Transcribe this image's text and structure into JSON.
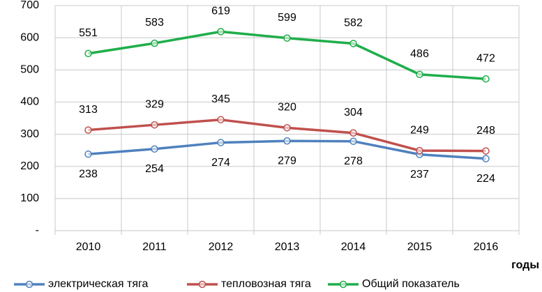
{
  "chart_data": {
    "type": "line",
    "x_label": "годы",
    "categories": [
      "2010",
      "2011",
      "2012",
      "2013",
      "2014",
      "2015",
      "2016"
    ],
    "series": [
      {
        "name": "электрическая тяга",
        "color": "#4f81bd",
        "values": [
          238,
          254,
          274,
          279,
          278,
          237,
          224
        ]
      },
      {
        "name": "тепловозная тяга",
        "color": "#c0504d",
        "values": [
          313,
          329,
          345,
          320,
          304,
          249,
          248
        ]
      },
      {
        "name": "Общий показатель",
        "color": "#1fae4a",
        "values": [
          551,
          583,
          619,
          599,
          582,
          486,
          472
        ]
      }
    ],
    "ylim": [
      0,
      700
    ],
    "yticks": [
      {
        "value": 0,
        "label": "-"
      },
      100,
      200,
      300,
      400,
      500,
      600,
      700
    ],
    "grid": true,
    "legend": "bottom"
  }
}
